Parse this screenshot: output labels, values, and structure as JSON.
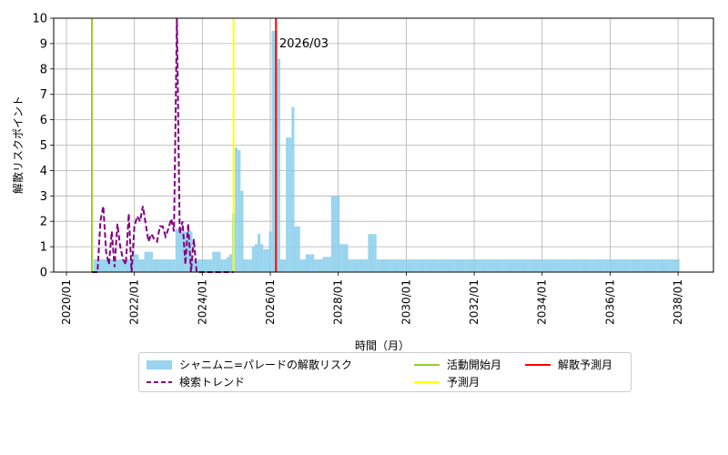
{
  "chart_data": {
    "type": "bar",
    "ylabel": "解散リスクポイント",
    "xlabel": "時間（月）",
    "ylim": [
      0,
      10
    ],
    "yticks": [
      "0",
      "1",
      "2",
      "3",
      "4",
      "5",
      "6",
      "7",
      "8",
      "9",
      "10"
    ],
    "xticks": [
      "2020/01",
      "2022/01",
      "2024/01",
      "2026/01",
      "2028/01",
      "2030/01",
      "2032/01",
      "2034/01",
      "2036/01",
      "2038/01"
    ],
    "grid": true,
    "legend_position": "bottom-center",
    "annotation": "2026/03",
    "bar_series_name": "シャニムニ=パレードの解散リスク",
    "bar_start": "2020/11",
    "bars": [
      0.5,
      0.5,
      0.5,
      0.5,
      0.5,
      0.5,
      0.5,
      0.5,
      0.5,
      0.5,
      0.5,
      0.5,
      0.5,
      0.5,
      0.7,
      0.7,
      0.5,
      0.5,
      0.8,
      0.8,
      0.8,
      0.5,
      0.5,
      0.5,
      0.5,
      0.5,
      0.5,
      0.5,
      0.5,
      1.7,
      1.7,
      1.6,
      1.6,
      1.6,
      1.6,
      0.5,
      0.5,
      0.5,
      0.5,
      0.5,
      0.5,
      0.5,
      0.8,
      0.8,
      0.8,
      0.5,
      0.5,
      0.6,
      0.7,
      2.3,
      4.9,
      4.8,
      3.2,
      0.5,
      0.5,
      0.5,
      1.0,
      1.1,
      1.5,
      1.1,
      0.9,
      0.9,
      1.6,
      9.5,
      9.5,
      8.4,
      0.5,
      0.5,
      5.3,
      5.3,
      6.5,
      1.8,
      1.8,
      0.5,
      0.5,
      0.7,
      0.7,
      0.7,
      0.5,
      0.5,
      0.5,
      0.6,
      0.6,
      0.6,
      3.0,
      3.0,
      3.0,
      1.1,
      1.1,
      1.1,
      0.5,
      0.5,
      0.5,
      0.5,
      0.5,
      0.5,
      0.5,
      1.5,
      1.5,
      1.5,
      0.5,
      0.5,
      0.5,
      0.5,
      0.5,
      0.5,
      0.5,
      0.5,
      0.5,
      0.5,
      0.5,
      0.5,
      0.5,
      0.5,
      0.5,
      0.5,
      0.5,
      0.5,
      0.5,
      0.5,
      0.5,
      0.5,
      0.5,
      0.5,
      0.5,
      0.5,
      0.5,
      0.5,
      0.5,
      0.5,
      0.5,
      0.5,
      0.5,
      0.5,
      0.5,
      0.5,
      0.5,
      0.5,
      0.5,
      0.5,
      0.5,
      0.5,
      0.5,
      0.5,
      0.5,
      0.5,
      0.5,
      0.5,
      0.5,
      0.5,
      0.5,
      0.5,
      0.5,
      0.5,
      0.5,
      0.5,
      0.5,
      0.5,
      0.5,
      0.5,
      0.5,
      0.5,
      0.5,
      0.5,
      0.5,
      0.5,
      0.5,
      0.5,
      0.5,
      0.5,
      0.5,
      0.5,
      0.5,
      0.5,
      0.5,
      0.5,
      0.5,
      0.5,
      0.5,
      0.5,
      0.5,
      0.5,
      0.5,
      0.5,
      0.5,
      0.5,
      0.5,
      0.5,
      0.5,
      0.5,
      0.5,
      0.5,
      0.5,
      0.5,
      0.5,
      0.5,
      0.5,
      0.5,
      0.5,
      0.5,
      0.5,
      0.5,
      0.5,
      0.5,
      0.5,
      0.5,
      0.5
    ],
    "trend_series_name": "検索トレンド",
    "trend": [
      {
        "x": "2020/10",
        "y": 0.0
      },
      {
        "x": "2020/11",
        "y": 0.0
      },
      {
        "x": "2020/12",
        "y": 0.0
      },
      {
        "x": "2021/01",
        "y": 2.0
      },
      {
        "x": "2021/02",
        "y": 2.6
      },
      {
        "x": "2021/03",
        "y": 0.8
      },
      {
        "x": "2021/04",
        "y": 0.3
      },
      {
        "x": "2021/05",
        "y": 1.6
      },
      {
        "x": "2021/06",
        "y": 0.2
      },
      {
        "x": "2021/07",
        "y": 1.9
      },
      {
        "x": "2021/08",
        "y": 1.0
      },
      {
        "x": "2021/09",
        "y": 0.5
      },
      {
        "x": "2021/10",
        "y": 0.3
      },
      {
        "x": "2021/11",
        "y": 2.3
      },
      {
        "x": "2021/12",
        "y": 0.0
      },
      {
        "x": "2022/01",
        "y": 1.8
      },
      {
        "x": "2022/02",
        "y": 2.2
      },
      {
        "x": "2022/03",
        "y": 2.0
      },
      {
        "x": "2022/04",
        "y": 2.6
      },
      {
        "x": "2022/05",
        "y": 1.9
      },
      {
        "x": "2022/06",
        "y": 1.2
      },
      {
        "x": "2022/07",
        "y": 1.5
      },
      {
        "x": "2022/08",
        "y": 1.3
      },
      {
        "x": "2022/09",
        "y": 1.2
      },
      {
        "x": "2022/10",
        "y": 1.8
      },
      {
        "x": "2022/11",
        "y": 1.8
      },
      {
        "x": "2022/12",
        "y": 1.4
      },
      {
        "x": "2023/01",
        "y": 1.7
      },
      {
        "x": "2023/02",
        "y": 2.1
      },
      {
        "x": "2023/03",
        "y": 1.6
      },
      {
        "x": "2023/04",
        "y": 10.0
      },
      {
        "x": "2023/05",
        "y": 1.5
      },
      {
        "x": "2023/06",
        "y": 2.0
      },
      {
        "x": "2023/07",
        "y": 0.3
      },
      {
        "x": "2023/08",
        "y": 1.9
      },
      {
        "x": "2023/09",
        "y": 0.0
      },
      {
        "x": "2023/10",
        "y": 1.3
      },
      {
        "x": "2023/11",
        "y": 0.0
      },
      {
        "x": "2023/12",
        "y": 0.0
      },
      {
        "x": "2024/01",
        "y": 0.0
      },
      {
        "x": "2024/02",
        "y": 0.0
      },
      {
        "x": "2024/03",
        "y": 0.0
      },
      {
        "x": "2024/04",
        "y": 0.0
      },
      {
        "x": "2024/05",
        "y": 0.0
      },
      {
        "x": "2024/06",
        "y": 0.0
      },
      {
        "x": "2024/07",
        "y": 0.0
      },
      {
        "x": "2024/08",
        "y": 0.0
      },
      {
        "x": "2024/09",
        "y": 0.0
      },
      {
        "x": "2024/10",
        "y": 0.0
      },
      {
        "x": "2024/11",
        "y": 0.0
      },
      {
        "x": "2024/12",
        "y": 0.0
      }
    ],
    "vlines": [
      {
        "name": "活動開始月",
        "x": "2020/10",
        "color": "#9acd32"
      },
      {
        "name": "予測月",
        "x": "2024/12",
        "color": "#ffff00"
      },
      {
        "name": "解散予測月",
        "x": "2026/03",
        "color": "#ff0000"
      }
    ],
    "colors": {
      "bars": "#87ceeb",
      "trend": "#800080",
      "grid": "#b0b0b0",
      "annotation": "#ff0000"
    }
  }
}
